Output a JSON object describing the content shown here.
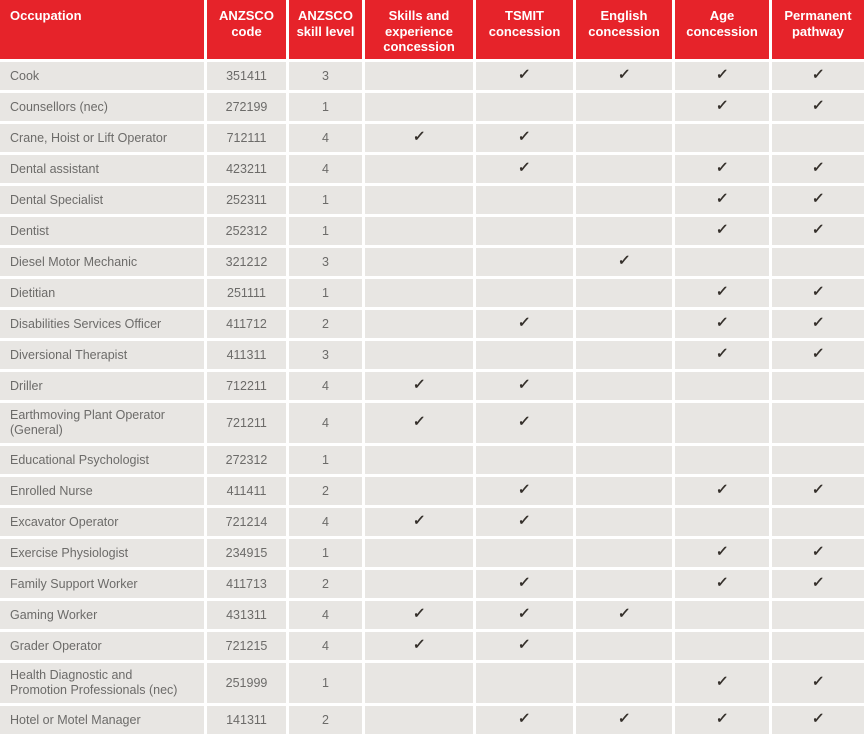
{
  "table": {
    "check_glyph": "✓",
    "columns": [
      {
        "key": "occupation",
        "label": "Occupation"
      },
      {
        "key": "anzsco_code",
        "label": "ANZSCO code"
      },
      {
        "key": "anzsco_skill_level",
        "label": "ANZSCO skill level"
      },
      {
        "key": "skills_experience",
        "label": "Skills and experience concession"
      },
      {
        "key": "tsmit",
        "label": "TSMIT concession"
      },
      {
        "key": "english",
        "label": "English concession"
      },
      {
        "key": "age",
        "label": "Age concession"
      },
      {
        "key": "permanent",
        "label": "Permanent pathway"
      }
    ],
    "rows": [
      {
        "occupation": "Cook",
        "anzsco_code": "351411",
        "anzsco_skill_level": "3",
        "skills_experience": false,
        "tsmit": true,
        "english": true,
        "age": true,
        "permanent": true
      },
      {
        "occupation": "Counsellors (nec)",
        "anzsco_code": "272199",
        "anzsco_skill_level": "1",
        "skills_experience": false,
        "tsmit": false,
        "english": false,
        "age": true,
        "permanent": true
      },
      {
        "occupation": "Crane, Hoist or Lift Operator",
        "anzsco_code": "712111",
        "anzsco_skill_level": "4",
        "skills_experience": true,
        "tsmit": true,
        "english": false,
        "age": false,
        "permanent": false
      },
      {
        "occupation": "Dental assistant",
        "anzsco_code": "423211",
        "anzsco_skill_level": "4",
        "skills_experience": false,
        "tsmit": true,
        "english": false,
        "age": true,
        "permanent": true
      },
      {
        "occupation": "Dental Specialist",
        "anzsco_code": "252311",
        "anzsco_skill_level": "1",
        "skills_experience": false,
        "tsmit": false,
        "english": false,
        "age": true,
        "permanent": true
      },
      {
        "occupation": "Dentist",
        "anzsco_code": "252312",
        "anzsco_skill_level": "1",
        "skills_experience": false,
        "tsmit": false,
        "english": false,
        "age": true,
        "permanent": true
      },
      {
        "occupation": "Diesel Motor Mechanic",
        "anzsco_code": "321212",
        "anzsco_skill_level": "3",
        "skills_experience": false,
        "tsmit": false,
        "english": true,
        "age": false,
        "permanent": false
      },
      {
        "occupation": "Dietitian",
        "anzsco_code": "251111",
        "anzsco_skill_level": "1",
        "skills_experience": false,
        "tsmit": false,
        "english": false,
        "age": true,
        "permanent": true
      },
      {
        "occupation": "Disabilities Services Officer",
        "anzsco_code": "411712",
        "anzsco_skill_level": "2",
        "skills_experience": false,
        "tsmit": true,
        "english": false,
        "age": true,
        "permanent": true
      },
      {
        "occupation": "Diversional Therapist",
        "anzsco_code": "411311",
        "anzsco_skill_level": "3",
        "skills_experience": false,
        "tsmit": false,
        "english": false,
        "age": true,
        "permanent": true
      },
      {
        "occupation": "Driller",
        "anzsco_code": "712211",
        "anzsco_skill_level": "4",
        "skills_experience": true,
        "tsmit": true,
        "english": false,
        "age": false,
        "permanent": false
      },
      {
        "occupation": "Earthmoving Plant Operator (General)",
        "anzsco_code": "721211",
        "anzsco_skill_level": "4",
        "skills_experience": true,
        "tsmit": true,
        "english": false,
        "age": false,
        "permanent": false
      },
      {
        "occupation": "Educational Psychologist",
        "anzsco_code": "272312",
        "anzsco_skill_level": "1",
        "skills_experience": false,
        "tsmit": false,
        "english": false,
        "age": false,
        "permanent": false
      },
      {
        "occupation": "Enrolled Nurse",
        "anzsco_code": "411411",
        "anzsco_skill_level": "2",
        "skills_experience": false,
        "tsmit": true,
        "english": false,
        "age": true,
        "permanent": true
      },
      {
        "occupation": "Excavator Operator",
        "anzsco_code": "721214",
        "anzsco_skill_level": "4",
        "skills_experience": true,
        "tsmit": true,
        "english": false,
        "age": false,
        "permanent": false
      },
      {
        "occupation": "Exercise Physiologist",
        "anzsco_code": "234915",
        "anzsco_skill_level": "1",
        "skills_experience": false,
        "tsmit": false,
        "english": false,
        "age": true,
        "permanent": true
      },
      {
        "occupation": "Family Support Worker",
        "anzsco_code": "411713",
        "anzsco_skill_level": "2",
        "skills_experience": false,
        "tsmit": true,
        "english": false,
        "age": true,
        "permanent": true
      },
      {
        "occupation": "Gaming Worker",
        "anzsco_code": "431311",
        "anzsco_skill_level": "4",
        "skills_experience": true,
        "tsmit": true,
        "english": true,
        "age": false,
        "permanent": false
      },
      {
        "occupation": "Grader Operator",
        "anzsco_code": "721215",
        "anzsco_skill_level": "4",
        "skills_experience": true,
        "tsmit": true,
        "english": false,
        "age": false,
        "permanent": false
      },
      {
        "occupation": "Health Diagnostic and Promotion Professionals (nec)",
        "anzsco_code": "251999",
        "anzsco_skill_level": "1",
        "skills_experience": false,
        "tsmit": false,
        "english": false,
        "age": true,
        "permanent": true
      },
      {
        "occupation": "Hotel or Motel Manager",
        "anzsco_code": "141311",
        "anzsco_skill_level": "2",
        "skills_experience": false,
        "tsmit": true,
        "english": true,
        "age": true,
        "permanent": true
      }
    ]
  },
  "colors": {
    "header_bg": "#e6232a",
    "header_text": "#ffffff",
    "row_bg": "#e8e6e3",
    "cell_text": "#6c6b69",
    "check": "#35302b",
    "divider": "#ffffff"
  }
}
